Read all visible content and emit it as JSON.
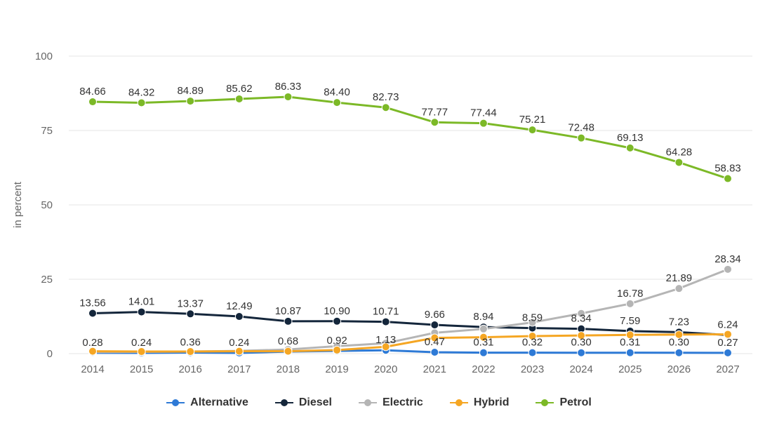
{
  "chart_data": {
    "type": "line",
    "ylabel": "in percent",
    "ylim": [
      0,
      100
    ],
    "yticks": [
      0,
      25,
      50,
      75,
      100
    ],
    "grid": true,
    "legend_position": "bottom",
    "categories": [
      "2014",
      "2015",
      "2016",
      "2017",
      "2018",
      "2019",
      "2020",
      "2021",
      "2022",
      "2023",
      "2024",
      "2025",
      "2026",
      "2027"
    ],
    "series": [
      {
        "name": "Alternative",
        "color": "#2e7ad6",
        "values": [
          0.28,
          0.24,
          0.36,
          0.24,
          0.68,
          0.92,
          1.13,
          0.47,
          0.31,
          0.32,
          0.3,
          0.31,
          0.3,
          0.27
        ],
        "labels": [
          "0.28",
          "0.24",
          "0.36",
          "0.24",
          "0.68",
          "0.92",
          "1.13",
          "0.47",
          "0.31",
          "0.32",
          "0.30",
          "0.31",
          "0.30",
          "0.27"
        ]
      },
      {
        "name": "Diesel",
        "color": "#14263b",
        "values": [
          13.56,
          14.01,
          13.37,
          12.49,
          10.87,
          10.9,
          10.71,
          9.66,
          8.94,
          8.59,
          8.34,
          7.59,
          7.23,
          6.24
        ],
        "labels": [
          "13.56",
          "14.01",
          "13.37",
          "12.49",
          "10.87",
          "10.90",
          "10.71",
          "9.66",
          "8.94",
          "8.59",
          "8.34",
          "7.59",
          "7.23",
          "6.24"
        ]
      },
      {
        "name": "Electric",
        "color": "#b5b5b5",
        "values": [
          0.5,
          0.6,
          0.7,
          0.9,
          1.4,
          2.5,
          3.5,
          7.0,
          8.3,
          10.5,
          13.5,
          16.78,
          21.89,
          28.34
        ],
        "labels": [
          null,
          null,
          null,
          null,
          null,
          null,
          null,
          null,
          null,
          null,
          null,
          "16.78",
          "21.89",
          "28.34"
        ]
      },
      {
        "name": "Hybrid",
        "color": "#f5a623",
        "values": [
          0.8,
          0.7,
          0.7,
          0.8,
          0.8,
          1.2,
          2.3,
          5.3,
          5.5,
          5.9,
          6.1,
          6.3,
          6.4,
          6.5
        ],
        "labels": [
          null,
          null,
          null,
          null,
          null,
          null,
          null,
          null,
          null,
          null,
          null,
          null,
          null,
          null
        ]
      },
      {
        "name": "Petrol",
        "color": "#7cb927",
        "values": [
          84.66,
          84.32,
          84.89,
          85.62,
          86.33,
          84.4,
          82.73,
          77.77,
          77.44,
          75.21,
          72.48,
          69.13,
          64.28,
          58.83
        ],
        "labels": [
          "84.66",
          "84.32",
          "84.89",
          "85.62",
          "86.33",
          "84.40",
          "82.73",
          "77.77",
          "77.44",
          "75.21",
          "72.48",
          "69.13",
          "64.28",
          "58.83"
        ]
      }
    ]
  }
}
